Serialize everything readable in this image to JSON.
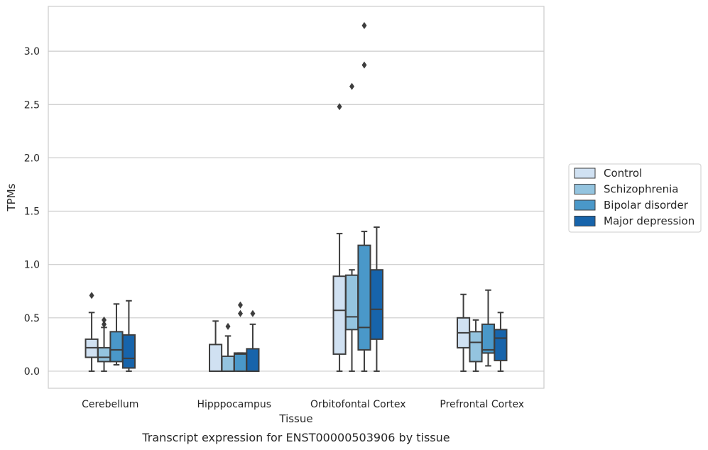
{
  "chart_data": {
    "type": "box",
    "title": "",
    "caption": "Transcript expression for ENST00000503906 by tissue",
    "xlabel": "Tissue",
    "ylabel": "TPMs",
    "ylim": [
      -0.16,
      3.42
    ],
    "yticks": [
      "0.0",
      "0.5",
      "1.0",
      "1.5",
      "2.0",
      "2.5",
      "3.0"
    ],
    "ytick_values": [
      0.0,
      0.5,
      1.0,
      1.5,
      2.0,
      2.5,
      3.0
    ],
    "grid": true,
    "legend_position": "right",
    "categories": [
      "Cerebellum",
      "Hipppocampus",
      "Orbitofontal Cortex",
      "Prefrontal Cortex"
    ],
    "series": [
      {
        "name": "Control",
        "color": "#d0e1f2",
        "boxes": [
          {
            "whislo": 0.0,
            "q1": 0.13,
            "med": 0.22,
            "q3": 0.3,
            "whishi": 0.55,
            "fliers": [
              0.71
            ]
          },
          {
            "whislo": 0.0,
            "q1": 0.0,
            "med": 0.0,
            "q3": 0.25,
            "whishi": 0.47,
            "fliers": []
          },
          {
            "whislo": 0.0,
            "q1": 0.16,
            "med": 0.57,
            "q3": 0.89,
            "whishi": 1.29,
            "fliers": [
              2.48
            ]
          },
          {
            "whislo": 0.0,
            "q1": 0.22,
            "med": 0.36,
            "q3": 0.5,
            "whishi": 0.72,
            "fliers": []
          }
        ]
      },
      {
        "name": "Schizophrenia",
        "color": "#94c4df",
        "boxes": [
          {
            "whislo": 0.0,
            "q1": 0.09,
            "med": 0.13,
            "q3": 0.22,
            "whishi": 0.41,
            "fliers": [
              0.44,
              0.48
            ]
          },
          {
            "whislo": 0.0,
            "q1": 0.0,
            "med": 0.0,
            "q3": 0.14,
            "whishi": 0.33,
            "fliers": [
              0.42
            ]
          },
          {
            "whislo": 0.0,
            "q1": 0.39,
            "med": 0.51,
            "q3": 0.9,
            "whishi": 0.95,
            "fliers": [
              2.67
            ]
          },
          {
            "whislo": 0.0,
            "q1": 0.09,
            "med": 0.27,
            "q3": 0.37,
            "whishi": 0.48,
            "fliers": []
          }
        ]
      },
      {
        "name": "Bipolar disorder",
        "color": "#4a98c9",
        "boxes": [
          {
            "whislo": 0.06,
            "q1": 0.09,
            "med": 0.2,
            "q3": 0.37,
            "whishi": 0.63,
            "fliers": []
          },
          {
            "whislo": 0.0,
            "q1": 0.0,
            "med": 0.16,
            "q3": 0.17,
            "whishi": 0.17,
            "fliers": [
              0.54,
              0.62
            ]
          },
          {
            "whislo": 0.0,
            "q1": 0.2,
            "med": 0.41,
            "q3": 1.18,
            "whishi": 1.31,
            "fliers": [
              2.87,
              3.24
            ]
          },
          {
            "whislo": 0.05,
            "q1": 0.17,
            "med": 0.2,
            "q3": 0.44,
            "whishi": 0.76,
            "fliers": []
          }
        ]
      },
      {
        "name": "Major depression",
        "color": "#1764ab",
        "boxes": [
          {
            "whislo": 0.0,
            "q1": 0.03,
            "med": 0.12,
            "q3": 0.34,
            "whishi": 0.66,
            "fliers": []
          },
          {
            "whislo": 0.0,
            "q1": 0.0,
            "med": 0.0,
            "q3": 0.21,
            "whishi": 0.44,
            "fliers": [
              0.54
            ]
          },
          {
            "whislo": 0.0,
            "q1": 0.3,
            "med": 0.58,
            "q3": 0.95,
            "whishi": 1.35,
            "fliers": []
          },
          {
            "whislo": 0.0,
            "q1": 0.1,
            "med": 0.31,
            "q3": 0.39,
            "whishi": 0.55,
            "fliers": []
          }
        ]
      }
    ]
  }
}
